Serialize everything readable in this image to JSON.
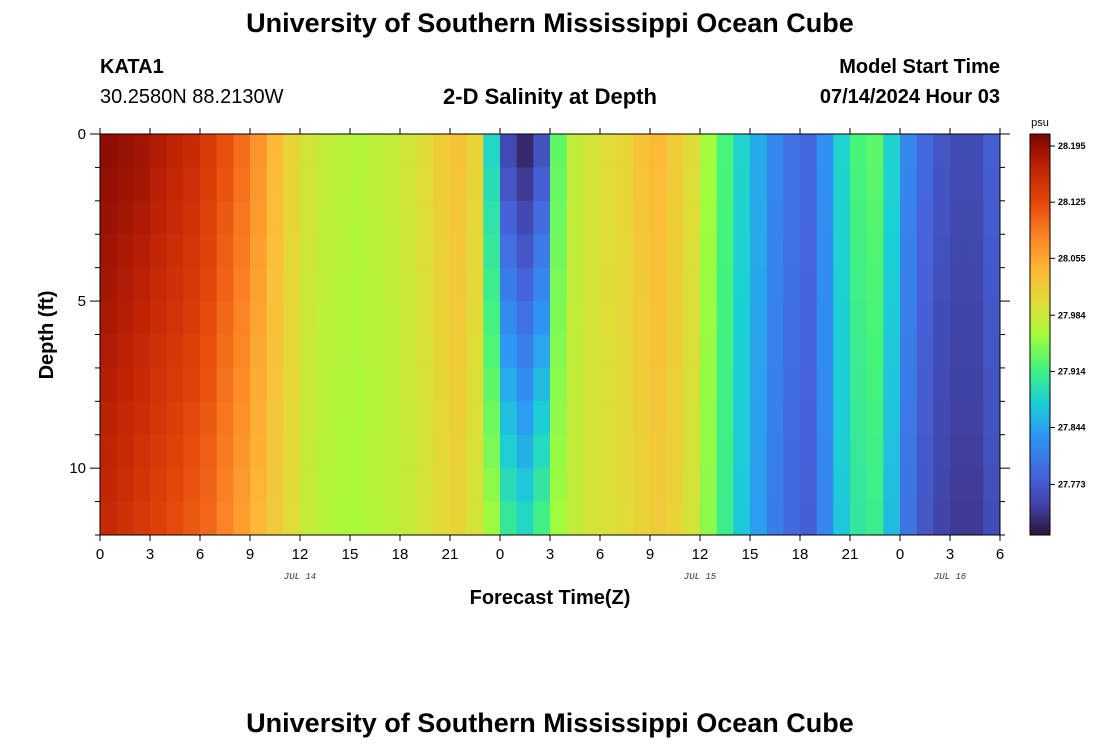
{
  "header": {
    "title": "University of Southern Mississippi Ocean Cube",
    "station": "KATA1",
    "coords": "30.2580N  88.2130W",
    "plot_title": "2-D Salinity at Depth",
    "model_start_label": "Model Start Time",
    "model_start_time": "07/14/2024 Hour 03"
  },
  "footer": {
    "title": "University of Southern Mississippi Ocean Cube"
  },
  "chart_data": {
    "type": "heatmap",
    "xlabel": "Forecast Time(Z)",
    "ylabel": "Depth (ft)",
    "x_range_hours": [
      0,
      54
    ],
    "x_ticks": [
      "0",
      "3",
      "6",
      "9",
      "12",
      "15",
      "18",
      "21",
      "0",
      "3",
      "6",
      "9",
      "12",
      "15",
      "18",
      "21",
      "0",
      "3",
      "6"
    ],
    "date_labels": [
      {
        "text": "JUL 14",
        "hour": 12
      },
      {
        "text": "JUL 15",
        "hour": 36
      },
      {
        "text": "JUL 16",
        "hour": 51
      }
    ],
    "ylim": [
      0,
      12
    ],
    "y_ticks": [
      0,
      5,
      10
    ],
    "colorbar": {
      "unit": "psu",
      "min": 27.71,
      "max": 28.21,
      "labels": [
        "28.195",
        "28.125",
        "28.055",
        "27.984",
        "27.914",
        "27.844",
        "27.773"
      ]
    },
    "hours": [
      0,
      1,
      2,
      3,
      4,
      5,
      6,
      7,
      8,
      9,
      10,
      11,
      12,
      13,
      14,
      15,
      16,
      17,
      18,
      19,
      20,
      21,
      22,
      23,
      24,
      25,
      26,
      27,
      28,
      29,
      30,
      31,
      32,
      33,
      34,
      35,
      36,
      37,
      38,
      39,
      40,
      41,
      42,
      43,
      44,
      45,
      46,
      47,
      48,
      49,
      50,
      51,
      52,
      53,
      54
    ],
    "depths_ft": [
      0,
      1,
      2,
      3,
      4,
      5,
      6,
      7,
      8,
      9,
      10,
      11,
      12
    ],
    "surface_salinity": [
      28.2,
      28.195,
      28.19,
      28.18,
      28.17,
      28.16,
      28.14,
      28.12,
      28.1,
      28.07,
      28.04,
      28.01,
      27.99,
      27.98,
      27.975,
      27.97,
      27.975,
      27.98,
      27.99,
      28.0,
      28.02,
      28.03,
      28.01,
      27.88,
      27.75,
      27.72,
      27.76,
      27.93,
      27.98,
      27.99,
      28.0,
      28.01,
      28.03,
      28.04,
      28.02,
      28.0,
      27.96,
      27.92,
      27.88,
      27.85,
      27.82,
      27.8,
      27.79,
      27.83,
      27.88,
      27.92,
      27.93,
      27.88,
      27.82,
      27.79,
      27.77,
      27.76,
      27.76,
      27.78,
      27.82
    ],
    "bottom_salinity": [
      28.16,
      28.15,
      28.14,
      28.13,
      28.12,
      28.11,
      28.1,
      28.08,
      28.06,
      28.04,
      28.02,
      28.0,
      27.98,
      27.97,
      27.965,
      27.965,
      27.97,
      27.975,
      27.98,
      27.99,
      28.0,
      28.01,
      27.99,
      27.96,
      27.91,
      27.89,
      27.92,
      27.96,
      27.98,
      27.99,
      27.995,
      28.0,
      28.01,
      28.02,
      28.01,
      27.99,
      27.95,
      27.91,
      27.87,
      27.84,
      27.81,
      27.79,
      27.78,
      27.82,
      27.87,
      27.9,
      27.91,
      27.86,
      27.8,
      27.77,
      27.75,
      27.74,
      27.74,
      27.76,
      27.8
    ]
  }
}
